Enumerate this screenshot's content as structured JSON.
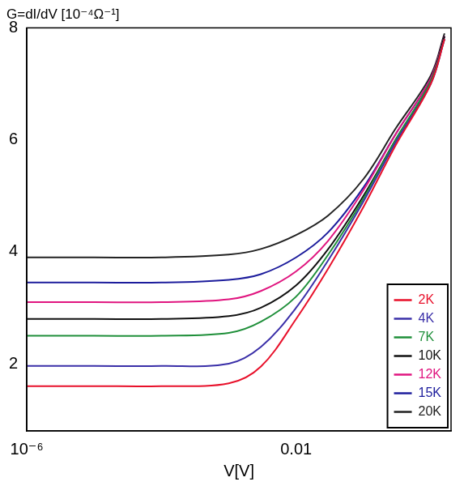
{
  "chart_data": {
    "type": "line",
    "title": "G=dI/dV [10⁻⁴Ω⁻¹]",
    "x_label": "V[V]",
    "log": "x",
    "grid": false,
    "legend": "lower right",
    "x": [
      1e-06,
      1e-05,
      0.0001,
      0.001,
      0.003,
      0.01,
      0.03,
      0.1,
      0.3,
      1,
      1.6
    ],
    "xlim": [
      1e-06,
      2
    ],
    "xticks": [
      {
        "value": 1e-06,
        "label": "10⁻⁶"
      },
      0.01
    ],
    "ylim": [
      0.8,
      8
    ],
    "yticks": [
      2,
      4,
      6,
      8
    ],
    "series": [
      {
        "name": "2K",
        "color": "#e8102a",
        "values": [
          1.6,
          1.6,
          1.6,
          1.65,
          1.95,
          2.8,
          3.7,
          4.8,
          5.9,
          7.0,
          7.8
        ]
      },
      {
        "name": "4K",
        "color": "#3a2fa8",
        "values": [
          1.96,
          1.96,
          1.96,
          2.0,
          2.3,
          3.0,
          3.85,
          4.9,
          5.95,
          7.0,
          7.8
        ]
      },
      {
        "name": "7K",
        "color": "#1f8f3a",
        "values": [
          2.5,
          2.5,
          2.5,
          2.55,
          2.75,
          3.2,
          3.95,
          4.95,
          6.0,
          7.05,
          7.8
        ]
      },
      {
        "name": "10K",
        "color": "#111111",
        "values": [
          2.8,
          2.8,
          2.8,
          2.85,
          3.0,
          3.4,
          4.05,
          5.0,
          6.0,
          7.05,
          7.85
        ]
      },
      {
        "name": "12K",
        "color": "#e0157f",
        "values": [
          3.1,
          3.1,
          3.1,
          3.15,
          3.3,
          3.65,
          4.2,
          5.1,
          6.1,
          7.1,
          7.85
        ]
      },
      {
        "name": "15K",
        "color": "#1c1c9c",
        "values": [
          3.45,
          3.45,
          3.45,
          3.5,
          3.6,
          3.9,
          4.35,
          5.15,
          6.1,
          7.1,
          7.85
        ]
      },
      {
        "name": "20K",
        "color": "#222222",
        "values": [
          3.9,
          3.9,
          3.9,
          3.95,
          4.05,
          4.3,
          4.65,
          5.3,
          6.2,
          7.15,
          7.9
        ]
      }
    ]
  }
}
